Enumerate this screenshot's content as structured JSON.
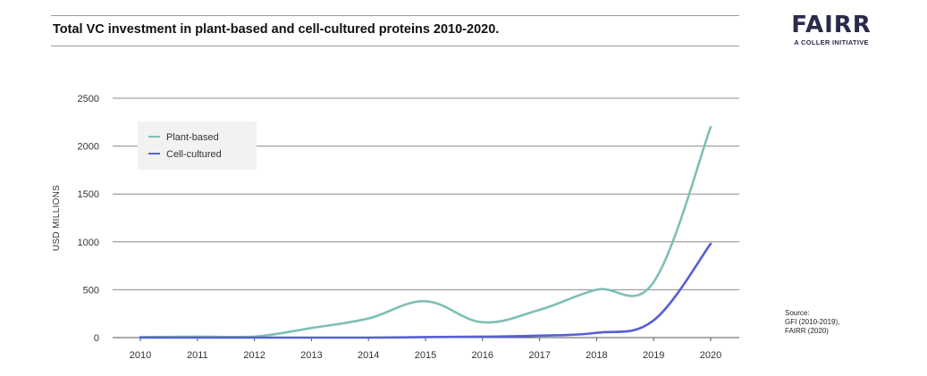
{
  "header": {
    "title": "Total VC investment in plant-based and cell-cultured proteins 2010-2020."
  },
  "logo": {
    "word": "FAIRR",
    "tagline": "A COLLER INITIATIVE"
  },
  "source": {
    "text": "Source:\nGFI (2010-2019),\nFAIRR (2020)"
  },
  "colors": {
    "plant_based": "#7fbfb6",
    "cell_cultured": "#5560d6",
    "grid": "#8c8c8c",
    "legend_bg": "#f2f2f2"
  },
  "chart_data": {
    "type": "line",
    "title": "Total VC investment in plant-based and cell-cultured proteins 2010-2020.",
    "xlabel": "",
    "ylabel": "USD MILLIONS",
    "x": [
      2010,
      2011,
      2012,
      2013,
      2014,
      2015,
      2016,
      2017,
      2018,
      2019,
      2020
    ],
    "x_tick_labels": [
      "2010",
      "2011",
      "2012",
      "2013",
      "2014",
      "2015",
      "2016",
      "2017",
      "2018",
      "2019",
      "2020"
    ],
    "y_tick_labels": [
      "0",
      "500",
      "1000",
      "1500",
      "2000",
      "2500"
    ],
    "y_ticks": [
      0,
      500,
      1000,
      1500,
      2000,
      2500
    ],
    "ylim": [
      0,
      2500
    ],
    "grid": "horizontal",
    "legend_position": "top-left",
    "series": [
      {
        "name": "Plant-based",
        "color": "#7fbfb6",
        "values": [
          5,
          10,
          10,
          100,
          200,
          380,
          160,
          290,
          500,
          580,
          2200
        ]
      },
      {
        "name": "Cell-cultured",
        "color": "#5560d6",
        "values": [
          0,
          0,
          0,
          0,
          0,
          5,
          10,
          20,
          50,
          180,
          980
        ]
      }
    ]
  }
}
